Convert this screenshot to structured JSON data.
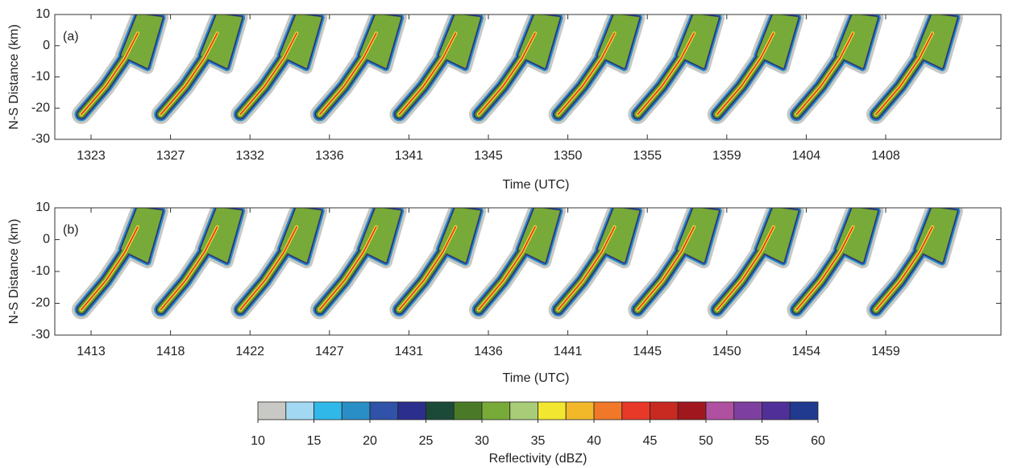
{
  "chart_data": [
    {
      "type": "image",
      "panel_label": "(a)",
      "y_label": "N-S Distance (km)",
      "x_label": "Time (UTC)",
      "categories": [
        "1323",
        "1327",
        "1332",
        "1336",
        "1341",
        "1345",
        "1350",
        "1355",
        "1359",
        "1404",
        "1408"
      ],
      "ylim": [
        -30,
        10
      ],
      "yticks": [
        -30,
        -20,
        -10,
        0,
        10
      ]
    },
    {
      "type": "image",
      "panel_label": "(b)",
      "y_label": "N-S Distance (km)",
      "x_label": "Time (UTC)",
      "categories": [
        "1413",
        "1418",
        "1422",
        "1427",
        "1431",
        "1436",
        "1441",
        "1445",
        "1450",
        "1454",
        "1459"
      ],
      "ylim": [
        -30,
        10
      ],
      "yticks": [
        -30,
        -20,
        -10,
        0,
        10
      ]
    }
  ],
  "colorbar": {
    "label": "Reflectivity (dBZ)",
    "lim": [
      10,
      60
    ],
    "ticks": [
      10,
      15,
      20,
      25,
      30,
      35,
      40,
      45,
      50,
      55,
      60
    ],
    "colors": [
      "#c8c8c4",
      "#a2d8f2",
      "#30b8e8",
      "#2a8ec6",
      "#3052a8",
      "#2c2e8e",
      "#1c4a38",
      "#4a7a28",
      "#78aa3a",
      "#a8cc78",
      "#f2e630",
      "#f2b82a",
      "#f07828",
      "#e83828",
      "#c82a22",
      "#a0181e",
      "#b050a0",
      "#7e40a0",
      "#503098",
      "#203a90"
    ]
  }
}
